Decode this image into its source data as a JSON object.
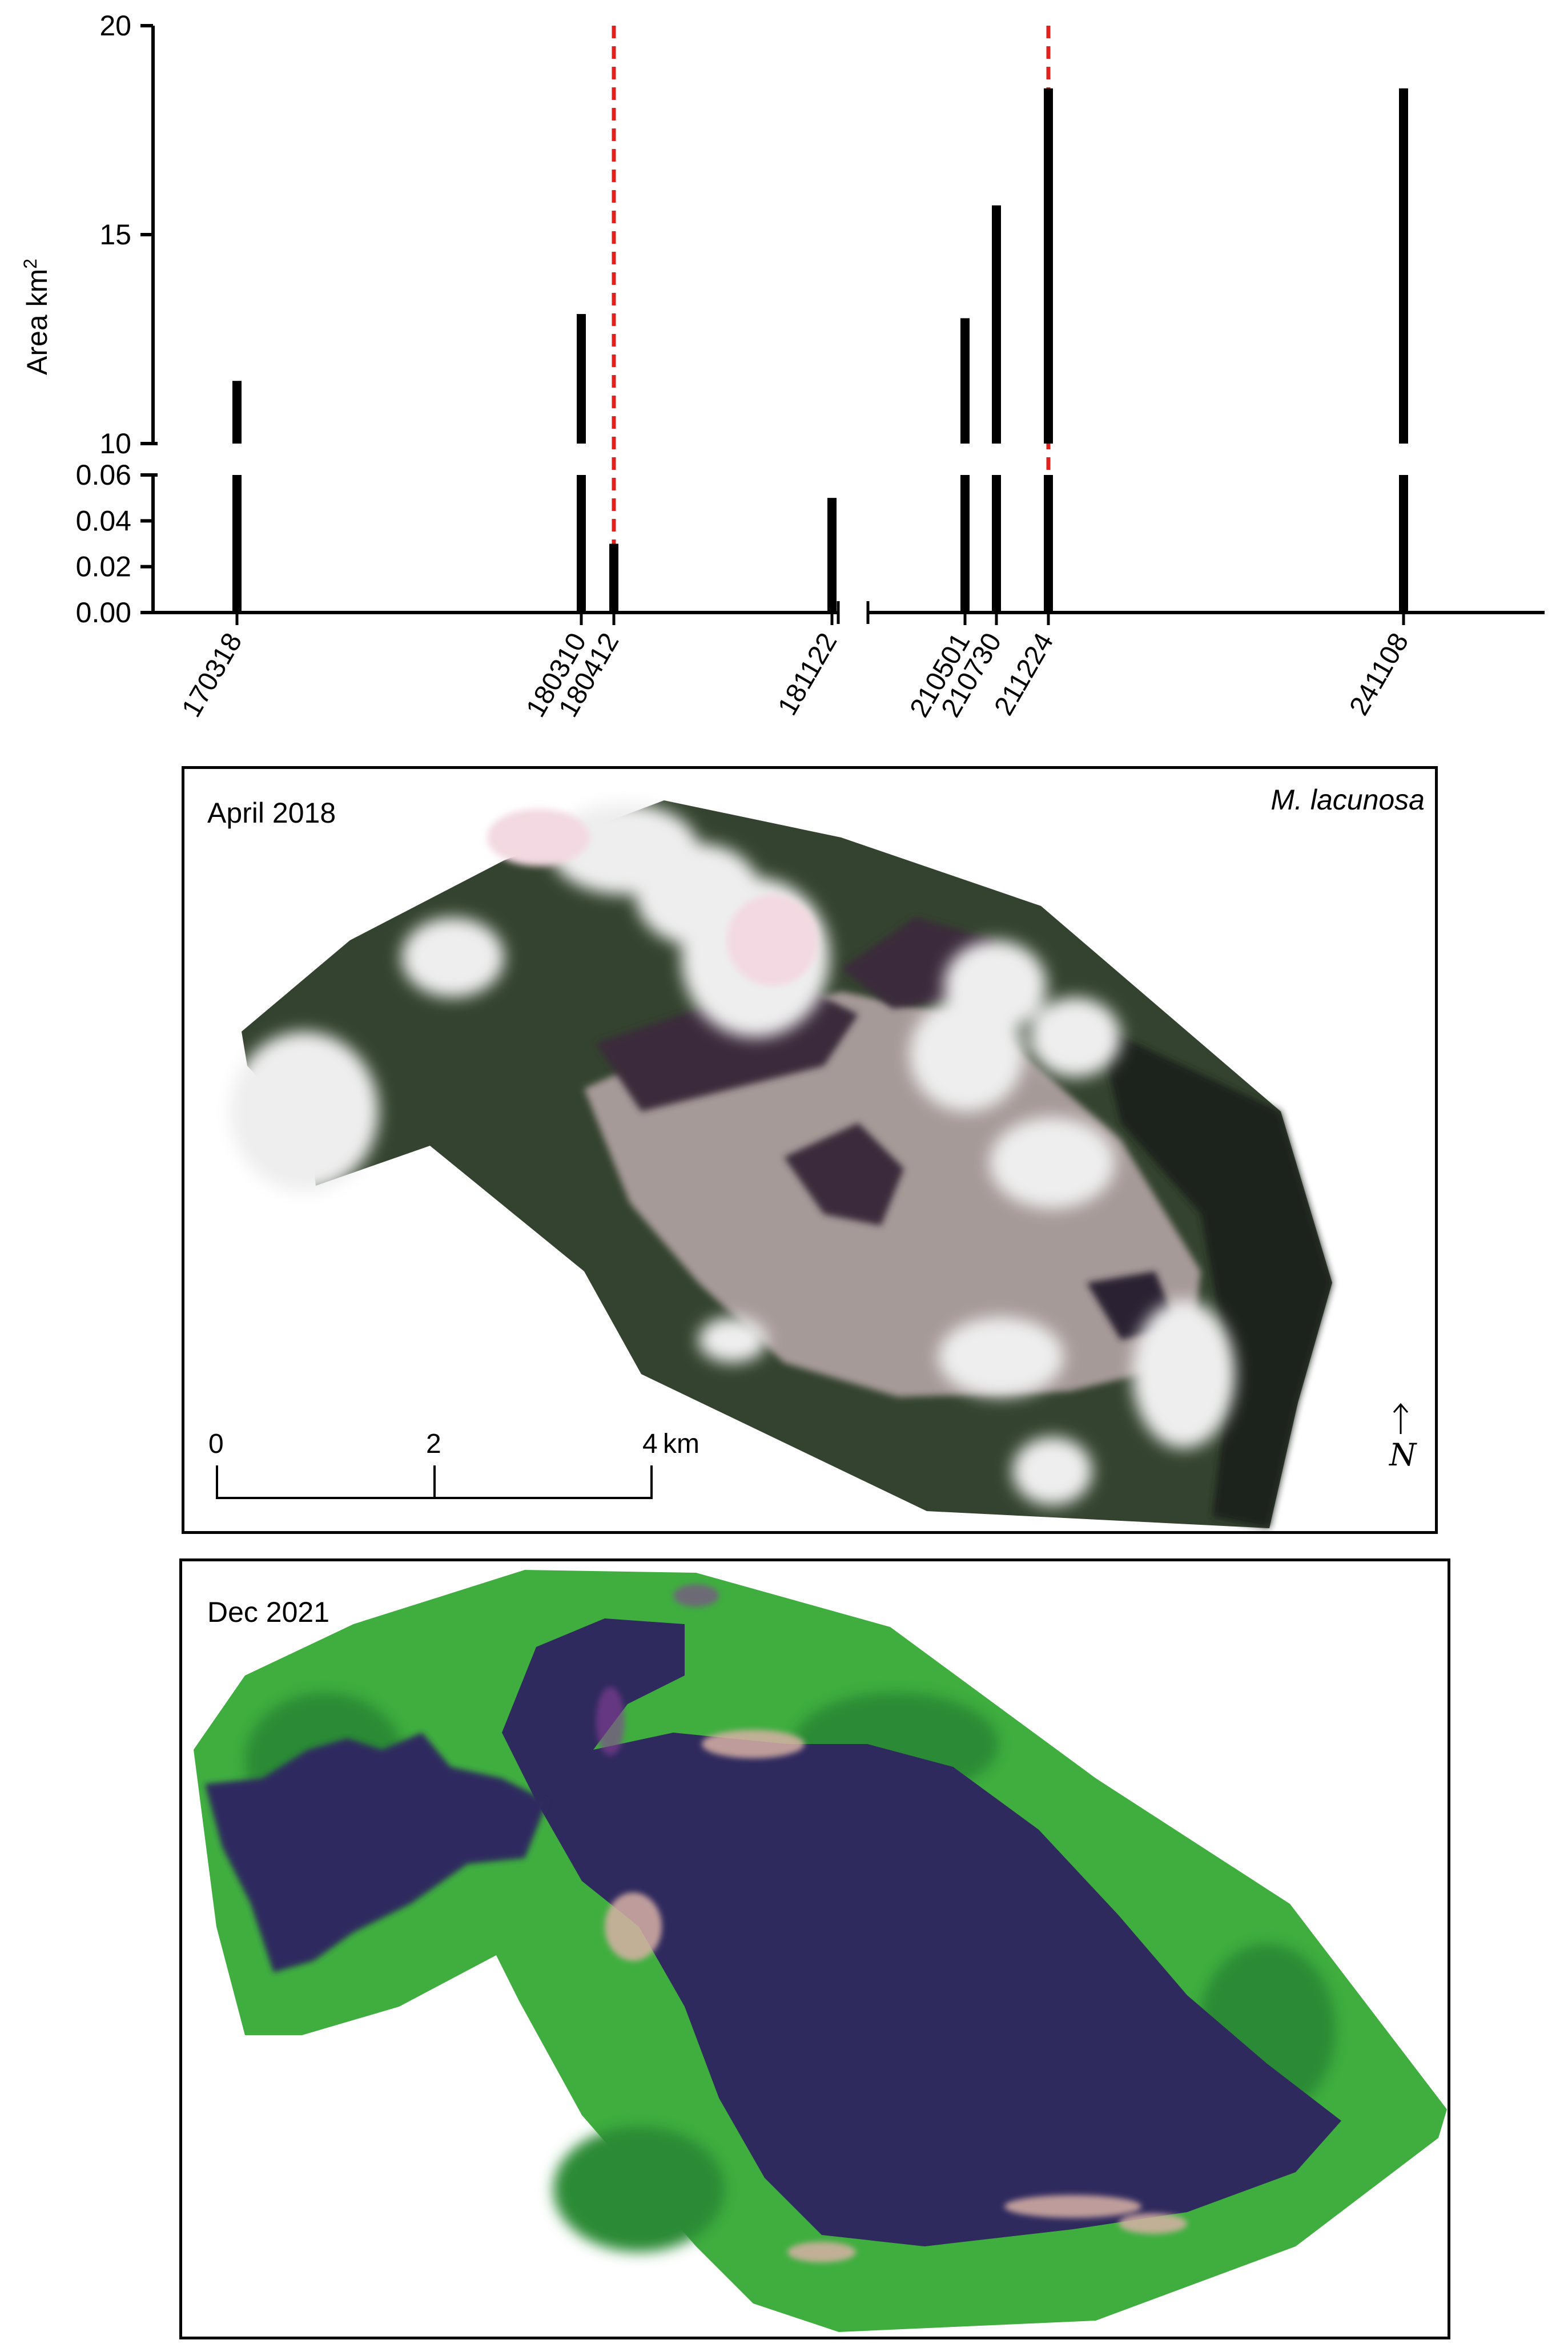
{
  "chart_data": {
    "type": "bar",
    "ylabel": "Area km",
    "ylabel_superscript": "2",
    "broken_y_axis": true,
    "ylim_lower": [
      0,
      0.06
    ],
    "ylim_upper": [
      10,
      20
    ],
    "yticks_lower": [
      "0.00",
      "0.02",
      "0.04",
      "0.06"
    ],
    "yticks_upper": [
      "10",
      "15",
      "20"
    ],
    "broken_x_axis": true,
    "categories": [
      "170318",
      "180310",
      "180412",
      "181122",
      "210501",
      "210730",
      "211224",
      "241108"
    ],
    "values": [
      11.5,
      13.1,
      0.03,
      0.05,
      13.0,
      15.7,
      18.5,
      18.5
    ],
    "reference_lines": [
      {
        "at": "180412",
        "color": "#e0211c",
        "style": "dashed"
      },
      {
        "at": "211224",
        "color": "#e0211c",
        "style": "dashed"
      }
    ],
    "bar_color": "#000000"
  },
  "panel_april": {
    "label": "April 2018",
    "species": "M. lacunosa",
    "scale_labels": [
      "0",
      "2",
      "4"
    ],
    "scale_unit": "km",
    "north_label": "N",
    "colors": {
      "forest": "#34432f",
      "wetland": "#a69a98",
      "dark_patch": "#3b2a3a",
      "cloud": "#eeeeee"
    }
  },
  "panel_dec": {
    "label": "Dec 2021",
    "colors": {
      "forest": "#3fae3f",
      "water": "#2f2a5e",
      "edge": "#d8b1a6"
    }
  }
}
